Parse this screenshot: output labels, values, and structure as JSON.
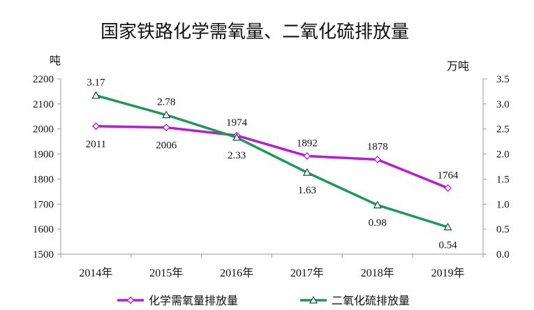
{
  "chart_data": {
    "type": "line",
    "title": "国家铁路化学需氧量、二氧化硫排放量",
    "left_axis_unit": "吨",
    "right_axis_unit": "万吨",
    "categories": [
      "2014年",
      "2015年",
      "2016年",
      "2017年",
      "2018年",
      "2019年"
    ],
    "left_axis": {
      "ylim": [
        1500,
        2200
      ],
      "ticks": [
        "1500",
        "1600",
        "1700",
        "1800",
        "1900",
        "2000",
        "2100",
        "2200"
      ]
    },
    "right_axis": {
      "ylim": [
        0.0,
        3.5
      ],
      "ticks": [
        "0.0",
        "0.5",
        "1.0",
        "1.5",
        "2.0",
        "2.5",
        "3.0",
        "3.5"
      ]
    },
    "series": [
      {
        "name": "化学需氧量排放量",
        "axis": "left",
        "color": "#b81bd6",
        "marker": "diamond",
        "values": [
          2011,
          2006,
          1974,
          1892,
          1878,
          1764
        ],
        "labels": [
          "2011",
          "2006",
          "1974",
          "1892",
          "1878",
          "1764"
        ],
        "label_position": [
          "below",
          "below",
          "above",
          "above",
          "above",
          "above"
        ]
      },
      {
        "name": "二氧化硫排放量",
        "axis": "right",
        "color": "#1c9a52",
        "marker": "triangle",
        "values": [
          3.17,
          2.78,
          2.33,
          1.63,
          0.98,
          0.54
        ],
        "labels": [
          "3.17",
          "2.78",
          "2.33",
          "1.63",
          "0.98",
          "0.54"
        ],
        "label_position": [
          "above",
          "above",
          "below",
          "below",
          "below",
          "below"
        ]
      }
    ],
    "grid": false,
    "legend_position": "bottom"
  }
}
